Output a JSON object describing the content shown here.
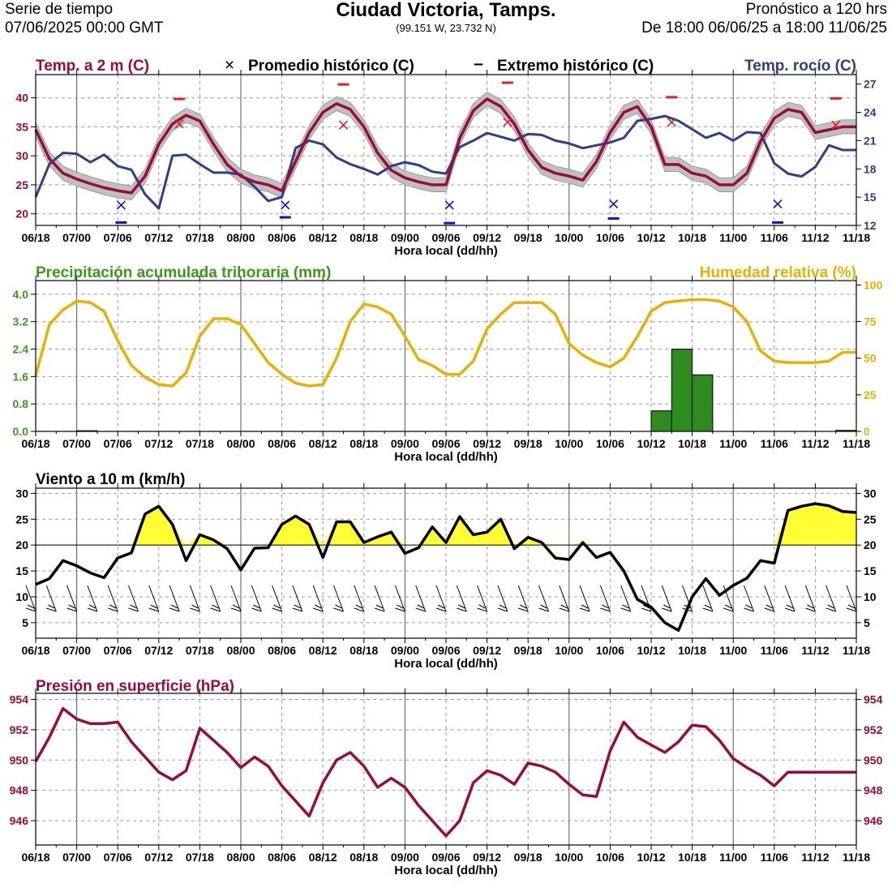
{
  "header": {
    "left_line1": "Serie de tiempo",
    "left_line2": "07/06/2025 00:00 GMT",
    "title": "Ciudad Victoria,  Tamps.",
    "coords": "(99.151 W, 23.732 N)",
    "right_line1": "Pronóstico a 120 hrs",
    "right_line2": "De 18:00 06/06/25 a 18:00 11/06/25"
  },
  "colors": {
    "temperature": "#9b0a3c",
    "dewpoint": "#2b3f8c",
    "precip_label": "#3a9a1a",
    "precip_bar": "#2e8b1e",
    "humidity": "#e8b000",
    "wind": "#000000",
    "wind_fill": "#ffff33",
    "pressure": "#9b0a3c",
    "hist_avg_max": "#e02020",
    "hist_avg_min": "#1010c0",
    "band": "#c0c0c0"
  },
  "chart_data": [
    {
      "type": "line",
      "id": "temperature",
      "title_left": "Temp. a 2 m (C)",
      "legend_avg_symbol": "×",
      "legend_avg": "Promedio histórico (C)",
      "legend_ext_symbol": "–",
      "legend_ext": "Extremo histórico (C)",
      "title_right": "Temp. rocío (C)",
      "xlabel": "Hora local (dd/hh)",
      "x_ticks": [
        "06/18",
        "07/00",
        "07/06",
        "07/12",
        "07/18",
        "08/00",
        "08/06",
        "08/12",
        "08/18",
        "09/00",
        "09/06",
        "09/12",
        "09/18",
        "10/00",
        "10/06",
        "10/12",
        "10/18",
        "11/00",
        "11/06",
        "11/12",
        "11/18"
      ],
      "x_range_hours": [
        0,
        120
      ],
      "ylim": [
        18,
        44
      ],
      "y_ticks": [
        20,
        25,
        30,
        35,
        40
      ],
      "y2lim": [
        12,
        28
      ],
      "y2_ticks": [
        12,
        15,
        18,
        21,
        24,
        27
      ],
      "band_halfwidth_c": 1.2,
      "series": [
        {
          "name": "Temp. a 2 m (C)",
          "axis": "left",
          "x": [
            0,
            2,
            4,
            6,
            8,
            10,
            12,
            14,
            16,
            18,
            20,
            22,
            24,
            26,
            28,
            30,
            32,
            34,
            36,
            38,
            40,
            42,
            44,
            46,
            48,
            50,
            52,
            54,
            56,
            58,
            60,
            62,
            64,
            66,
            68,
            70,
            72,
            74,
            76,
            78,
            80,
            82,
            84,
            86,
            88,
            90,
            92,
            94,
            96,
            98,
            100,
            102,
            104,
            106,
            108,
            110,
            112,
            114,
            116,
            118,
            120
          ],
          "values": [
            34.5,
            29.5,
            27.0,
            26.0,
            25.2,
            24.5,
            24.0,
            23.6,
            26.5,
            32.0,
            35.5,
            37.0,
            36.0,
            32.0,
            28.5,
            26.5,
            25.5,
            25.0,
            24.0,
            29.0,
            34.0,
            37.5,
            39.0,
            38.0,
            35.0,
            30.5,
            27.5,
            26.2,
            25.5,
            25.0,
            25.0,
            33.0,
            37.8,
            39.8,
            38.5,
            35.5,
            31.0,
            28.0,
            27.0,
            26.5,
            25.8,
            29.0,
            34.0,
            37.5,
            38.5,
            35.0,
            28.5,
            28.5,
            27.0,
            26.5,
            25.0,
            25.0,
            27.0,
            32.5,
            36.5,
            38.0,
            37.5,
            34.0,
            34.5,
            35.0,
            35.0
          ]
        },
        {
          "name": "Temp. rocío (C)",
          "axis": "right",
          "x": [
            0,
            2,
            4,
            6,
            8,
            10,
            12,
            14,
            16,
            18,
            20,
            22,
            24,
            26,
            28,
            30,
            32,
            34,
            36,
            38,
            40,
            42,
            44,
            46,
            48,
            50,
            52,
            54,
            56,
            58,
            60,
            62,
            64,
            66,
            68,
            70,
            72,
            74,
            76,
            78,
            80,
            82,
            84,
            86,
            88,
            90,
            92,
            94,
            96,
            98,
            100,
            102,
            104,
            106,
            108,
            110,
            112,
            114,
            116,
            118,
            120
          ],
          "values": [
            15.0,
            18.5,
            19.7,
            19.6,
            18.7,
            19.5,
            18.3,
            17.9,
            15.3,
            13.8,
            19.4,
            19.5,
            18.5,
            17.6,
            17.6,
            17.4,
            16.1,
            14.6,
            15.0,
            20.2,
            21.0,
            20.6,
            19.2,
            18.5,
            18.0,
            17.4,
            18.3,
            18.7,
            18.4,
            17.7,
            17.5,
            20.3,
            21.0,
            21.8,
            21.4,
            21.0,
            21.7,
            21.6,
            21.0,
            20.7,
            20.2,
            20.5,
            20.8,
            21.3,
            23.1,
            23.3,
            23.6,
            23.1,
            22.2,
            21.3,
            21.8,
            21.0,
            21.9,
            21.8,
            18.6,
            17.5,
            17.2,
            18.2,
            20.5,
            20.0,
            20.0
          ]
        }
      ],
      "historical_avg_max": [
        {
          "x": 21,
          "value": 35.5
        },
        {
          "x": 45,
          "value": 35.3
        },
        {
          "x": 69,
          "value": 35.8
        },
        {
          "x": 93,
          "value": 35.8
        },
        {
          "x": 117,
          "value": 35.3
        }
      ],
      "historical_avg_min": [
        {
          "x": 12.5,
          "value": 21.5
        },
        {
          "x": 36.5,
          "value": 21.5
        },
        {
          "x": 60.5,
          "value": 21.5
        },
        {
          "x": 84.5,
          "value": 21.7
        },
        {
          "x": 108.5,
          "value": 21.7
        }
      ],
      "historical_ext_max": [
        {
          "x": 21,
          "value": 39.8
        },
        {
          "x": 45,
          "value": 42.3
        },
        {
          "x": 69,
          "value": 42.6
        },
        {
          "x": 93,
          "value": 40.1
        },
        {
          "x": 117,
          "value": 39.9
        }
      ],
      "historical_ext_min": [
        {
          "x": 12.5,
          "value": 18.5
        },
        {
          "x": 36.5,
          "value": 19.4
        },
        {
          "x": 60.5,
          "value": 18.4
        },
        {
          "x": 84.5,
          "value": 19.2
        },
        {
          "x": 108.5,
          "value": 18.5
        }
      ]
    },
    {
      "type": "bar",
      "id": "precipitation",
      "title_left": "Precipitación acumulada trihoraria (mm)",
      "title_right": "Humedad relativa (%)",
      "xlabel": "Hora local (dd/hh)",
      "x_ticks": [
        "06/18",
        "07/00",
        "07/06",
        "07/12",
        "07/18",
        "08/00",
        "08/06",
        "08/12",
        "08/18",
        "09/00",
        "09/06",
        "09/12",
        "09/18",
        "10/00",
        "10/06",
        "10/12",
        "10/18",
        "11/00",
        "11/06",
        "11/12",
        "11/18"
      ],
      "ylim": [
        0,
        4.4
      ],
      "y_ticks": [
        "0.0",
        "0.8",
        "1.6",
        "2.4",
        "3.2",
        "4.0"
      ],
      "y2lim": [
        0,
        103
      ],
      "y2_ticks": [
        0,
        25,
        50,
        75,
        100
      ],
      "bars": [
        {
          "x_start": 6,
          "x_end": 9,
          "value": 0.02
        },
        {
          "x_start": 90,
          "x_end": 93,
          "value": 0.6
        },
        {
          "x_start": 93,
          "x_end": 96,
          "value": 2.4
        },
        {
          "x_start": 96,
          "x_end": 99,
          "value": 1.65
        },
        {
          "x_start": 117,
          "x_end": 120,
          "value": 0.03
        }
      ],
      "series": [
        {
          "name": "Humedad relativa (%)",
          "axis": "right",
          "x": [
            0,
            2,
            4,
            6,
            8,
            10,
            12,
            14,
            16,
            18,
            20,
            22,
            24,
            26,
            28,
            30,
            32,
            34,
            36,
            38,
            40,
            42,
            44,
            46,
            48,
            50,
            52,
            54,
            56,
            58,
            60,
            62,
            64,
            66,
            68,
            70,
            72,
            74,
            76,
            78,
            80,
            82,
            84,
            86,
            88,
            90,
            92,
            94,
            96,
            98,
            100,
            102,
            104,
            106,
            108,
            110,
            112,
            114,
            116,
            118,
            120
          ],
          "values": [
            38,
            73,
            83,
            89,
            88,
            82,
            62,
            45,
            37,
            32,
            31,
            40,
            65,
            77,
            77,
            73,
            60,
            47,
            39,
            33,
            31,
            32,
            50,
            75,
            87,
            85,
            80,
            65,
            49,
            45,
            39,
            39,
            48,
            70,
            80,
            88,
            88,
            88,
            80,
            60,
            52,
            47,
            44,
            50,
            65,
            82,
            88,
            89,
            90,
            90,
            89,
            85,
            75,
            55,
            48,
            47,
            47,
            47,
            48,
            54,
            54
          ]
        }
      ]
    },
    {
      "type": "line",
      "id": "wind",
      "title_left": "Viento a 10 m (km/h)",
      "xlabel": "Hora local (dd/hh)",
      "x_ticks": [
        "06/18",
        "07/00",
        "07/06",
        "07/12",
        "07/18",
        "08/00",
        "08/06",
        "08/12",
        "08/18",
        "09/00",
        "09/06",
        "09/12",
        "09/18",
        "10/00",
        "10/06",
        "10/12",
        "10/18",
        "11/00",
        "11/06",
        "11/12",
        "11/18"
      ],
      "ylim": [
        2,
        31
      ],
      "y_ticks": [
        5,
        10,
        15,
        20,
        25,
        30
      ],
      "y2_ticks": [
        5,
        10,
        15,
        20,
        25,
        30
      ],
      "threshold": 20,
      "barb_interval_hours": 3,
      "series": [
        {
          "name": "Viento a 10 m (km/h)",
          "x": [
            0,
            2,
            4,
            6,
            8,
            10,
            12,
            14,
            16,
            18,
            20,
            22,
            24,
            26,
            28,
            30,
            32,
            34,
            36,
            38,
            40,
            42,
            44,
            46,
            48,
            50,
            52,
            54,
            56,
            58,
            60,
            62,
            64,
            66,
            68,
            70,
            72,
            74,
            76,
            78,
            80,
            82,
            84,
            86,
            88,
            90,
            92,
            94,
            96,
            98,
            100,
            102,
            104,
            106,
            108,
            110,
            112,
            114,
            116,
            118,
            120
          ],
          "values": [
            12.4,
            13.5,
            17.0,
            16.0,
            14.6,
            13.7,
            17.5,
            18.5,
            26.0,
            27.5,
            24.0,
            17.0,
            22.0,
            21.0,
            19.3,
            15.2,
            19.4,
            19.5,
            24.0,
            25.6,
            24.0,
            17.6,
            24.5,
            24.5,
            20.5,
            21.6,
            22.5,
            18.4,
            19.5,
            23.5,
            20.5,
            25.5,
            22.0,
            22.5,
            25.0,
            19.3,
            21.5,
            20.5,
            17.5,
            17.2,
            20.5,
            17.6,
            18.6,
            15.0,
            9.5,
            8.0,
            5.0,
            3.5,
            10.0,
            13.5,
            10.3,
            12.2,
            13.6,
            17.0,
            16.5,
            26.7,
            27.5,
            28.0,
            27.6,
            26.5,
            26.3
          ]
        }
      ]
    },
    {
      "type": "line",
      "id": "pressure",
      "title_left": "Presión en superficie (hPa)",
      "xlabel": "Hora local (dd/hh)",
      "x_ticks": [
        "06/18",
        "07/00",
        "07/06",
        "07/12",
        "07/18",
        "08/00",
        "08/06",
        "08/12",
        "08/18",
        "09/00",
        "09/06",
        "09/12",
        "09/18",
        "10/00",
        "10/06",
        "10/12",
        "10/18",
        "11/00",
        "11/06",
        "11/12",
        "11/18"
      ],
      "ylim": [
        944.4,
        954.4
      ],
      "y_ticks": [
        946,
        948,
        950,
        952,
        954
      ],
      "y2_ticks": [
        946,
        948,
        950,
        952,
        954
      ],
      "series": [
        {
          "name": "Presión en superficie (hPa)",
          "x": [
            0,
            2,
            4,
            6,
            8,
            10,
            12,
            14,
            16,
            18,
            20,
            22,
            24,
            26,
            28,
            30,
            32,
            34,
            36,
            38,
            40,
            42,
            44,
            46,
            48,
            50,
            52,
            54,
            56,
            58,
            60,
            62,
            64,
            66,
            68,
            70,
            72,
            74,
            76,
            78,
            80,
            82,
            84,
            86,
            88,
            90,
            92,
            94,
            96,
            98,
            100,
            102,
            104,
            106,
            108,
            110,
            112,
            114,
            116,
            118,
            120
          ],
          "values": [
            949.9,
            951.5,
            953.4,
            952.7,
            952.4,
            952.4,
            952.5,
            951.2,
            950.2,
            949.2,
            948.7,
            949.3,
            952.1,
            951.3,
            950.5,
            949.5,
            950.2,
            949.6,
            948.3,
            947.3,
            946.3,
            948.5,
            950.0,
            950.5,
            949.6,
            948.2,
            948.8,
            948.2,
            947.0,
            946.0,
            945.0,
            946.0,
            948.5,
            949.3,
            949.0,
            948.4,
            949.8,
            949.6,
            949.2,
            948.4,
            947.7,
            947.6,
            950.6,
            952.5,
            951.5,
            951.0,
            950.5,
            951.2,
            952.3,
            952.2,
            951.3,
            950.1,
            949.5,
            949.0,
            948.3,
            949.2,
            949.2,
            949.2,
            949.2,
            949.2,
            949.2
          ]
        }
      ]
    }
  ]
}
